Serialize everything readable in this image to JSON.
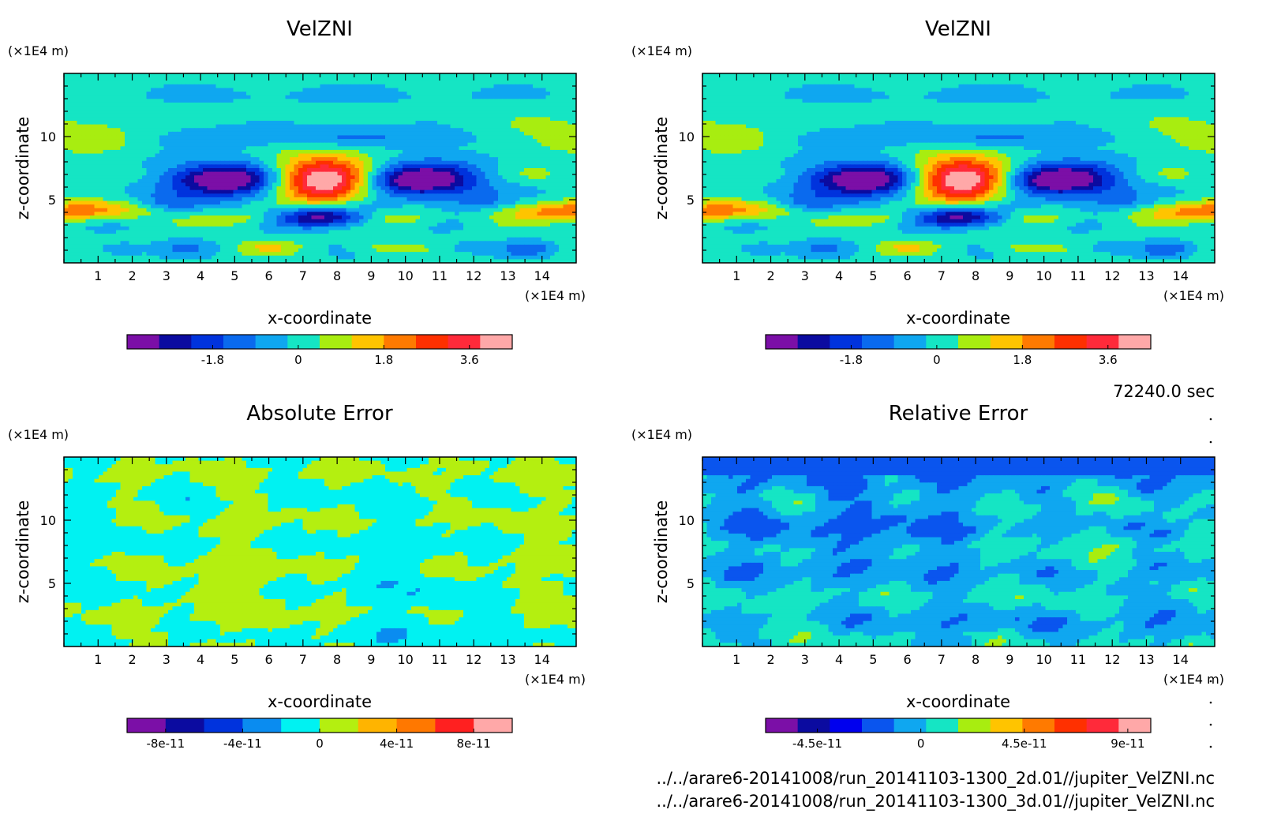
{
  "chart_data": [
    {
      "type": "heatmap",
      "title": "VelZNI",
      "xlabel": "x-coordinate",
      "ylabel": "z-coordinate",
      "x_unit": "(×1E4 m)",
      "y_unit": "(×1E4 m)",
      "xlim": [
        0,
        15
      ],
      "ylim": [
        0,
        15
      ],
      "x_ticks": [
        "1",
        "2",
        "3",
        "4",
        "5",
        "6",
        "7",
        "8",
        "9",
        "10",
        "11",
        "12",
        "13",
        "14"
      ],
      "y_ticks": [
        "5",
        "10"
      ],
      "colorbar": {
        "min": -3.6,
        "max": 4.5,
        "tick_values": [
          -1.8,
          0,
          1.8,
          3.6
        ],
        "tick_labels": [
          "-1.8",
          "0",
          "1.8",
          "3.6"
        ],
        "colors": [
          "#7b0fa7",
          "#0b0ba0",
          "#0033dd",
          "#0a6aee",
          "#0fa7f0",
          "#15e5c4",
          "#a8ed10",
          "#ffc400",
          "#ff7a00",
          "#ff3000",
          "#ff2a3a",
          "#ffa8a8"
        ]
      }
    },
    {
      "type": "heatmap",
      "title": "VelZNI",
      "xlabel": "x-coordinate",
      "ylabel": "z-coordinate",
      "x_unit": "(×1E4 m)",
      "y_unit": "(×1E4 m)",
      "xlim": [
        0,
        15
      ],
      "ylim": [
        0,
        15
      ],
      "x_ticks": [
        "1",
        "2",
        "3",
        "4",
        "5",
        "6",
        "7",
        "8",
        "9",
        "10",
        "11",
        "12",
        "13",
        "14"
      ],
      "y_ticks": [
        "5",
        "10"
      ],
      "colorbar": {
        "min": -3.6,
        "max": 4.5,
        "tick_values": [
          -1.8,
          0,
          1.8,
          3.6
        ],
        "tick_labels": [
          "-1.8",
          "0",
          "1.8",
          "3.6"
        ],
        "colors": [
          "#7b0fa7",
          "#0b0ba0",
          "#0033dd",
          "#0a6aee",
          "#0fa7f0",
          "#15e5c4",
          "#a8ed10",
          "#ffc400",
          "#ff7a00",
          "#ff3000",
          "#ff2a3a",
          "#ffa8a8"
        ]
      }
    },
    {
      "type": "heatmap",
      "title": "Absolute Error",
      "xlabel": "x-coordinate",
      "ylabel": "z-coordinate",
      "x_unit": "(×1E4 m)",
      "y_unit": "(×1E4 m)",
      "xlim": [
        0,
        15
      ],
      "ylim": [
        0,
        15
      ],
      "x_ticks": [
        "1",
        "2",
        "3",
        "4",
        "5",
        "6",
        "7",
        "8",
        "9",
        "10",
        "11",
        "12",
        "13",
        "14"
      ],
      "y_ticks": [
        "5",
        "10"
      ],
      "colorbar": {
        "min": -1e-10,
        "max": 1e-10,
        "tick_values": [
          -8e-11,
          -4e-11,
          0,
          4e-11,
          8e-11
        ],
        "tick_labels": [
          "-8e-11",
          "-4e-11",
          "0",
          "4e-11",
          "8e-11"
        ],
        "colors": [
          "#7b0fa7",
          "#0b0ba0",
          "#0033dd",
          "#0a8cf0",
          "#00f2f2",
          "#b4ef10",
          "#ffb400",
          "#ff7800",
          "#ff2020",
          "#ffa8a8"
        ]
      }
    },
    {
      "type": "heatmap",
      "title": "Relative Error",
      "xlabel": "x-coordinate",
      "ylabel": "z-coordinate",
      "x_unit": "(×1E4 m)",
      "y_unit": "(×1E4 m)",
      "xlim": [
        0,
        15
      ],
      "ylim": [
        0,
        15
      ],
      "x_ticks": [
        "1",
        "2",
        "3",
        "4",
        "5",
        "6",
        "7",
        "8",
        "9",
        "10",
        "11",
        "12",
        "13",
        "14"
      ],
      "y_ticks": [
        "5",
        "10"
      ],
      "colorbar": {
        "min": -6.75e-11,
        "max": 1e-10,
        "tick_values": [
          -4.5e-11,
          0,
          4.5e-11,
          9e-11
        ],
        "tick_labels": [
          "-4.5e-11",
          "0",
          "4.5e-11",
          "9e-11"
        ],
        "colors": [
          "#7b0fa7",
          "#0b0ba0",
          "#0000ee",
          "#0a55ee",
          "#0fa7f0",
          "#15e5c4",
          "#a8ed10",
          "#ffc400",
          "#ff7a00",
          "#ff3000",
          "#ff2a3a",
          "#ffa8a8"
        ]
      }
    }
  ],
  "time_label": "72240.0 sec",
  "file_paths": [
    "../../arare6-20141008/run_20141103-1300_2d.01//jupiter_VelZNI.nc",
    "../../arare6-20141008/run_20141103-1300_3d.01//jupiter_VelZNI.nc"
  ]
}
